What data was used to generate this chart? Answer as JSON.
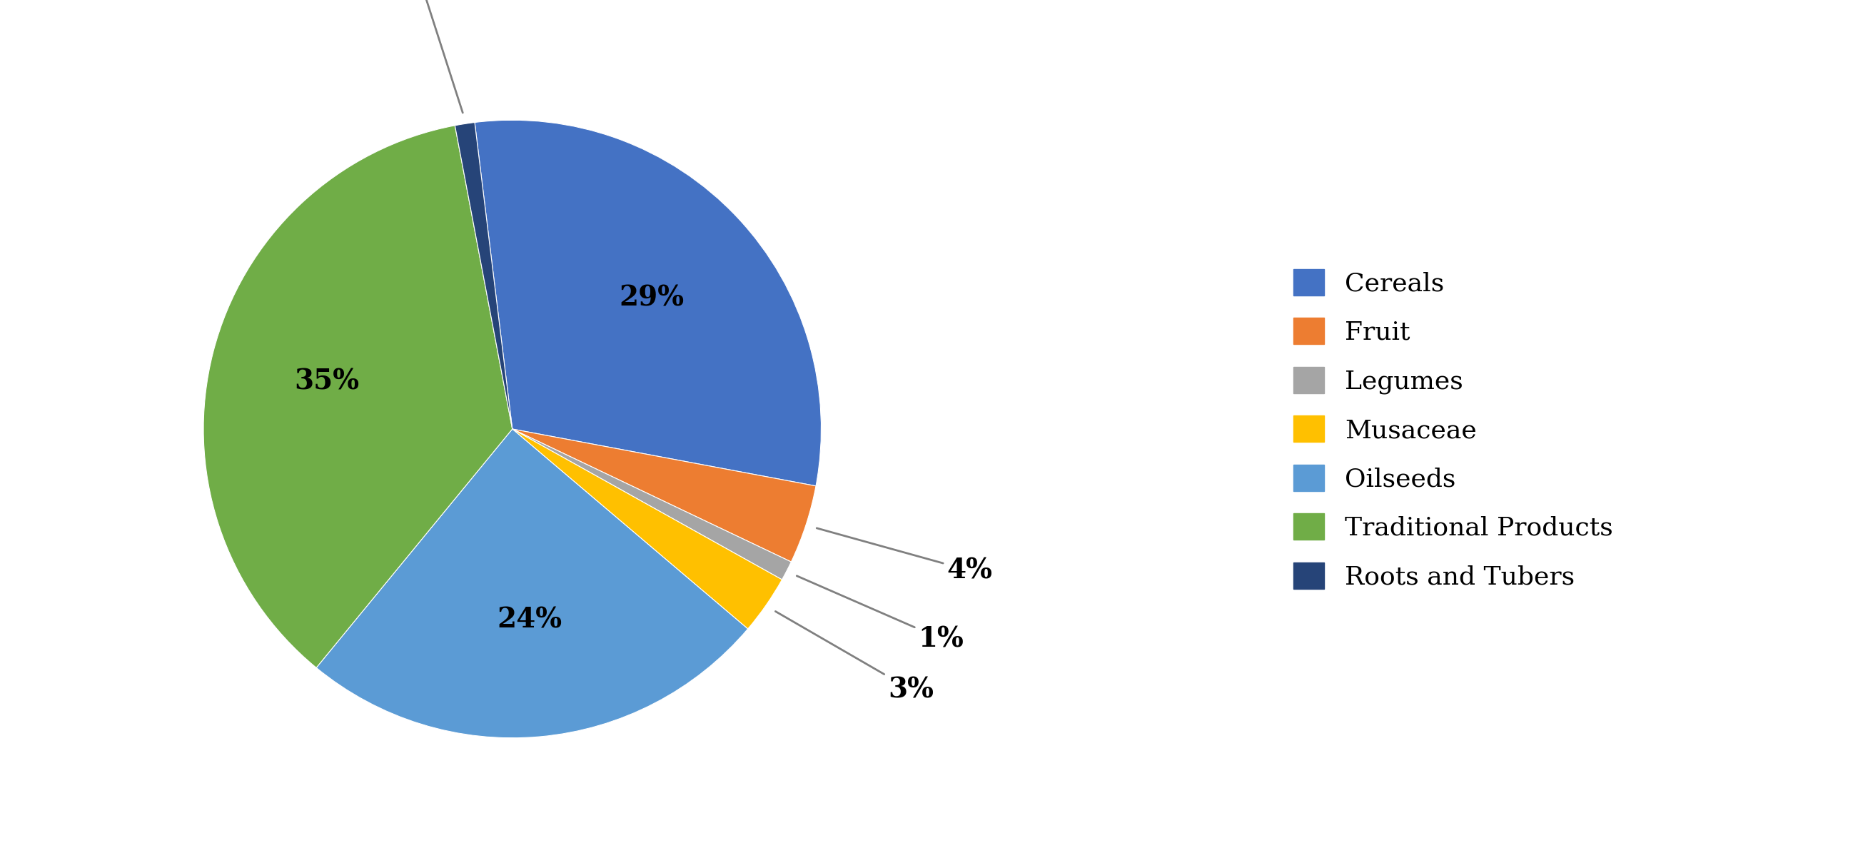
{
  "labels": [
    "Cereals",
    "Fruit",
    "Legumes",
    "Musaceae",
    "Oilseeds",
    "Traditional Products",
    "Roots and Tubers"
  ],
  "values": [
    29,
    4,
    1,
    3,
    24,
    35,
    1
  ],
  "colors": [
    "#4472C4",
    "#ED7D31",
    "#A5A5A5",
    "#FFC000",
    "#5B9BD5",
    "#70AD47",
    "#264478"
  ],
  "slice_order": [
    "Cereals",
    "Fruit",
    "Legumes",
    "Musaceae",
    "Oilseeds",
    "Traditional Products",
    "Roots and Tubers"
  ],
  "slice_values_ordered": [
    29,
    4,
    1,
    3,
    24,
    35,
    1
  ],
  "background_color": "#FFFFFF",
  "label_fontsize": 28,
  "legend_fontsize": 26,
  "startangle": 97,
  "figsize": [
    26.1,
    12.02
  ]
}
